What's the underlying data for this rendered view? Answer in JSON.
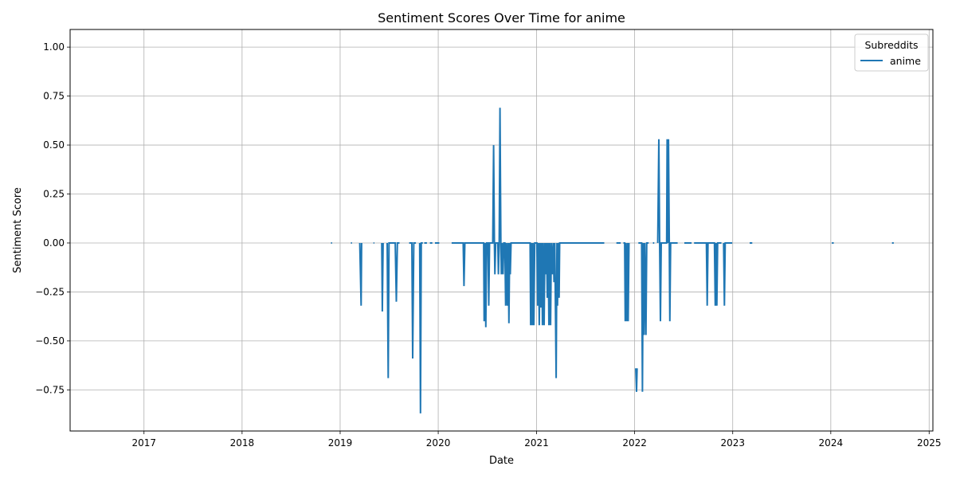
{
  "chart_data": {
    "type": "line",
    "title": "Sentiment Scores Over Time for anime",
    "xlabel": "Date",
    "ylabel": "Sentiment Score",
    "x_axis_type": "date",
    "xlim": [
      "2016-04-01",
      "2025-01-15"
    ],
    "ylim": [
      -0.96,
      1.09
    ],
    "xticks": [
      {
        "date": "2017-01-01",
        "label": "2017"
      },
      {
        "date": "2018-01-01",
        "label": "2018"
      },
      {
        "date": "2019-01-01",
        "label": "2019"
      },
      {
        "date": "2020-01-01",
        "label": "2020"
      },
      {
        "date": "2021-01-01",
        "label": "2021"
      },
      {
        "date": "2022-01-01",
        "label": "2022"
      },
      {
        "date": "2023-01-01",
        "label": "2023"
      },
      {
        "date": "2024-01-01",
        "label": "2024"
      },
      {
        "date": "2025-01-01",
        "label": "2025"
      }
    ],
    "yticks": [
      {
        "value": 1.0,
        "label": "1.00"
      },
      {
        "value": 0.75,
        "label": "0.75"
      },
      {
        "value": 0.5,
        "label": "0.50"
      },
      {
        "value": 0.25,
        "label": "0.25"
      },
      {
        "value": 0.0,
        "label": "0.00"
      },
      {
        "value": -0.25,
        "label": "−0.25"
      },
      {
        "value": -0.5,
        "label": "−0.50"
      },
      {
        "value": -0.75,
        "label": "−0.75"
      }
    ],
    "grid": true,
    "legend": {
      "title": "Subreddits",
      "placement": "top-right"
    },
    "series": [
      {
        "name": "anime",
        "color": "#1f77b4",
        "segments": [
          [
            [
              "2018-11-28",
              0
            ],
            [
              "2018-12-02",
              0
            ]
          ],
          [
            [
              "2019-02-10",
              0
            ],
            [
              "2019-02-14",
              0
            ]
          ],
          [
            [
              "2019-03-15",
              0
            ],
            [
              "2019-03-20",
              -0.32
            ],
            [
              "2019-03-22",
              0
            ]
          ],
          [
            [
              "2019-05-05",
              0
            ],
            [
              "2019-05-08",
              0
            ]
          ],
          [
            [
              "2019-06-05",
              0
            ],
            [
              "2019-06-07",
              -0.35
            ],
            [
              "2019-06-10",
              0
            ]
          ],
          [
            [
              "2019-06-25",
              0
            ],
            [
              "2019-06-29",
              -0.69
            ],
            [
              "2019-07-02",
              0
            ],
            [
              "2019-07-25",
              0
            ],
            [
              "2019-07-29",
              -0.3
            ],
            [
              "2019-08-02",
              0
            ],
            [
              "2019-08-10",
              0
            ]
          ],
          [
            [
              "2019-09-15",
              0
            ],
            [
              "2019-09-25",
              0
            ],
            [
              "2019-09-28",
              -0.59
            ],
            [
              "2019-10-02",
              0
            ],
            [
              "2019-10-10",
              0
            ]
          ],
          [
            [
              "2019-10-24",
              0
            ],
            [
              "2019-10-27",
              -0.87
            ],
            [
              "2019-10-30",
              0
            ],
            [
              "2019-11-05",
              0
            ]
          ],
          [
            [
              "2019-11-10",
              0
            ],
            [
              "2019-11-20",
              0
            ]
          ],
          [
            [
              "2019-12-01",
              0
            ],
            [
              "2019-12-10",
              0
            ]
          ],
          [
            [
              "2019-12-20",
              0
            ],
            [
              "2020-01-05",
              0
            ]
          ],
          [
            [
              "2020-02-20",
              0
            ],
            [
              "2020-04-03",
              0
            ],
            [
              "2020-04-06",
              -0.22
            ],
            [
              "2020-04-09",
              0
            ],
            [
              "2020-06-18",
              0
            ],
            [
              "2020-06-20",
              -0.4
            ],
            [
              "2020-06-23",
              0
            ],
            [
              "2020-06-26",
              -0.43
            ],
            [
              "2020-06-29",
              0
            ],
            [
              "2020-07-04",
              0
            ],
            [
              "2020-07-07",
              -0.32
            ],
            [
              "2020-07-10",
              0
            ],
            [
              "2020-07-22",
              0
            ],
            [
              "2020-07-25",
              0.5
            ],
            [
              "2020-07-28",
              0
            ],
            [
              "2020-07-30",
              -0.16
            ],
            [
              "2020-08-02",
              0
            ],
            [
              "2020-08-10",
              0
            ],
            [
              "2020-08-12",
              -0.16
            ],
            [
              "2020-08-15",
              0
            ],
            [
              "2020-08-18",
              0.69
            ],
            [
              "2020-08-21",
              0
            ],
            [
              "2020-08-23",
              -0.16
            ],
            [
              "2020-08-26",
              0
            ],
            [
              "2020-08-29",
              -0.16
            ],
            [
              "2020-09-01",
              0
            ],
            [
              "2020-09-05",
              0
            ],
            [
              "2020-09-08",
              -0.32
            ],
            [
              "2020-09-11",
              0
            ],
            [
              "2020-09-14",
              -0.32
            ],
            [
              "2020-09-17",
              0
            ],
            [
              "2020-09-20",
              -0.41
            ],
            [
              "2020-09-23",
              0
            ],
            [
              "2020-09-25",
              -0.16
            ],
            [
              "2020-09-28",
              0
            ],
            [
              "2020-12-08",
              0
            ],
            [
              "2020-12-10",
              -0.42
            ],
            [
              "2020-12-13",
              0
            ],
            [
              "2020-12-16",
              -0.42
            ],
            [
              "2020-12-19",
              0
            ],
            [
              "2020-12-22",
              -0.42
            ],
            [
              "2020-12-25",
              0
            ],
            [
              "2021-01-02",
              0
            ],
            [
              "2021-01-05",
              -0.32
            ],
            [
              "2021-01-08",
              0
            ],
            [
              "2021-01-11",
              -0.42
            ],
            [
              "2021-01-14",
              0
            ],
            [
              "2021-01-17",
              -0.33
            ],
            [
              "2021-01-20",
              0
            ],
            [
              "2021-01-23",
              -0.42
            ],
            [
              "2021-01-26",
              0
            ],
            [
              "2021-01-29",
              -0.42
            ],
            [
              "2021-02-01",
              0
            ],
            [
              "2021-02-04",
              -0.16
            ],
            [
              "2021-02-07",
              0
            ],
            [
              "2021-02-10",
              -0.28
            ],
            [
              "2021-02-13",
              0
            ],
            [
              "2021-02-16",
              -0.42
            ],
            [
              "2021-02-19",
              0
            ],
            [
              "2021-02-22",
              -0.42
            ],
            [
              "2021-02-25",
              0
            ],
            [
              "2021-03-01",
              -0.16
            ],
            [
              "2021-03-04",
              0
            ],
            [
              "2021-03-07",
              -0.2
            ],
            [
              "2021-03-10",
              0
            ],
            [
              "2021-03-15",
              -0.69
            ],
            [
              "2021-03-18",
              0
            ],
            [
              "2021-03-20",
              -0.32
            ],
            [
              "2021-03-23",
              0
            ],
            [
              "2021-03-26",
              -0.28
            ],
            [
              "2021-03-28",
              0
            ],
            [
              "2021-09-10",
              0
            ]
          ],
          [
            [
              "2021-10-25",
              0
            ],
            [
              "2021-11-10",
              0
            ]
          ],
          [
            [
              "2021-11-20",
              0
            ],
            [
              "2021-11-25",
              0
            ],
            [
              "2021-11-27",
              -0.4
            ],
            [
              "2021-11-30",
              0
            ],
            [
              "2021-12-03",
              -0.4
            ],
            [
              "2021-12-06",
              0
            ],
            [
              "2021-12-08",
              -0.4
            ],
            [
              "2021-12-11",
              0
            ]
          ],
          [
            [
              "2022-01-05",
              -0.64
            ],
            [
              "2022-01-08",
              -0.76
            ],
            [
              "2022-01-10",
              -0.64
            ]
          ],
          [
            [
              "2022-01-15",
              0
            ],
            [
              "2022-01-27",
              0
            ],
            [
              "2022-01-30",
              -0.76
            ],
            [
              "2022-02-02",
              0
            ],
            [
              "2022-02-05",
              -0.47
            ],
            [
              "2022-02-08",
              0
            ],
            [
              "2022-02-12",
              -0.47
            ],
            [
              "2022-02-15",
              0
            ],
            [
              "2022-02-22",
              0
            ]
          ],
          [
            [
              "2022-03-10",
              0
            ],
            [
              "2022-03-15",
              0
            ]
          ],
          [
            [
              "2022-03-28",
              0
            ],
            [
              "2022-04-01",
              0.53
            ],
            [
              "2022-04-04",
              0
            ],
            [
              "2022-04-07",
              -0.4
            ],
            [
              "2022-04-10",
              0
            ],
            [
              "2022-04-30",
              0
            ],
            [
              "2022-05-02",
              0.53
            ],
            [
              "2022-05-05",
              0
            ],
            [
              "2022-05-07",
              0.53
            ],
            [
              "2022-05-10",
              0
            ],
            [
              "2022-05-12",
              -0.4
            ],
            [
              "2022-05-15",
              0
            ],
            [
              "2022-06-10",
              0
            ]
          ],
          [
            [
              "2022-07-05",
              0
            ],
            [
              "2022-08-01",
              0
            ]
          ],
          [
            [
              "2022-08-10",
              0
            ],
            [
              "2022-09-25",
              0
            ],
            [
              "2022-09-28",
              -0.32
            ],
            [
              "2022-10-01",
              0
            ],
            [
              "2022-10-25",
              0
            ],
            [
              "2022-10-28",
              -0.32
            ],
            [
              "2022-10-31",
              0
            ],
            [
              "2022-11-03",
              -0.32
            ],
            [
              "2022-11-06",
              0
            ],
            [
              "2022-11-20",
              0
            ]
          ],
          [
            [
              "2022-11-28",
              0
            ],
            [
              "2022-12-01",
              -0.32
            ],
            [
              "2022-12-04",
              0
            ],
            [
              "2022-12-30",
              0
            ]
          ],
          [
            [
              "2023-03-05",
              0
            ],
            [
              "2023-03-15",
              0
            ]
          ],
          [
            [
              "2024-01-05",
              0
            ],
            [
              "2024-01-12",
              0
            ]
          ],
          [
            [
              "2024-08-16",
              0
            ],
            [
              "2024-08-22",
              0
            ]
          ]
        ]
      }
    ]
  }
}
